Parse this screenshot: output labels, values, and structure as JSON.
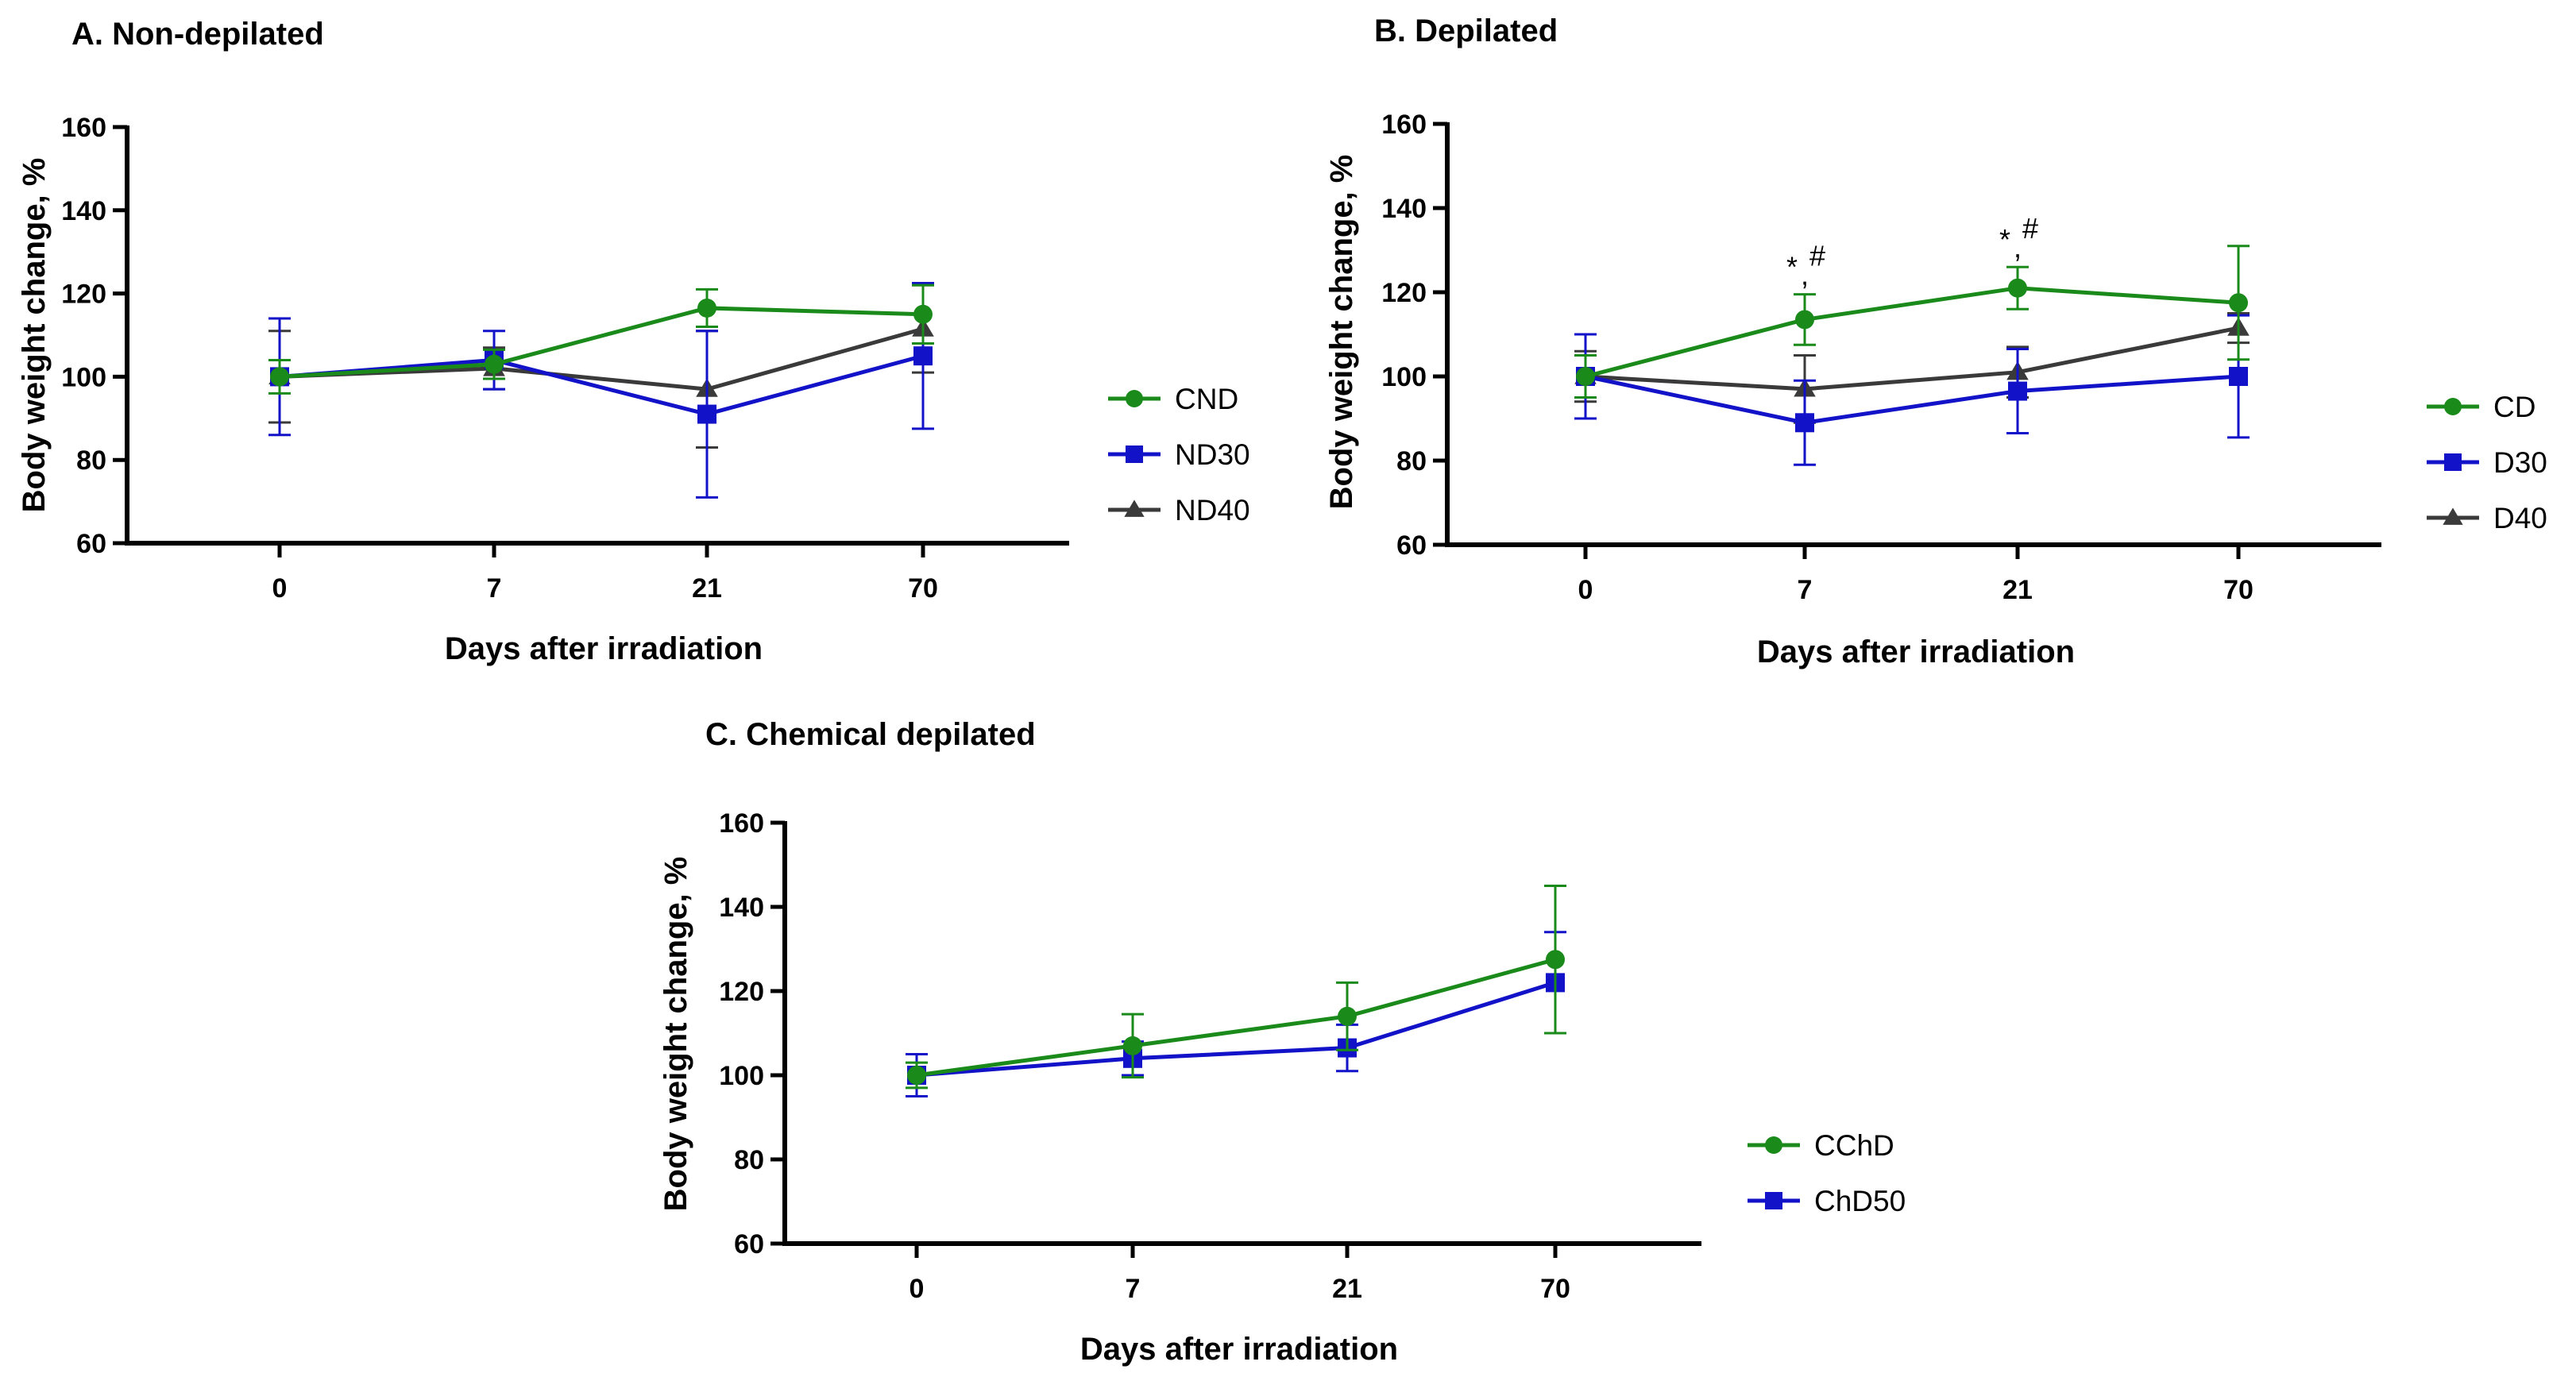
{
  "colors": {
    "green": "#1a8a1a",
    "blue": "#1212c8",
    "gray": "#3a3a3a",
    "axis": "#000000"
  },
  "chart_data": [
    {
      "id": "A",
      "type": "line",
      "title": "A. Non-depilated",
      "xlabel": "Days after irradiation",
      "ylabel": "Body weight change, %",
      "categories": [
        "0",
        "7",
        "21",
        "70"
      ],
      "ylim": [
        60,
        160
      ],
      "yticks": [
        "60",
        "80",
        "100",
        "120",
        "140",
        "160"
      ],
      "legend_position": "right",
      "series": [
        {
          "name": "CND",
          "color": "green",
          "marker": "circle",
          "values": [
            100,
            103,
            116.5,
            115
          ],
          "errors": [
            4,
            3.5,
            4.5,
            7
          ]
        },
        {
          "name": "ND30",
          "color": "blue",
          "marker": "square",
          "values": [
            100,
            104,
            91,
            105
          ],
          "errors": [
            14,
            7,
            20,
            17.5
          ]
        },
        {
          "name": "ND40",
          "color": "gray",
          "marker": "triangle",
          "values": [
            100,
            102,
            97,
            111.5
          ],
          "errors": [
            11,
            5,
            14,
            10.5
          ]
        }
      ],
      "annotations": []
    },
    {
      "id": "B",
      "type": "line",
      "title": "B. Depilated",
      "xlabel": "Days after irradiation",
      "ylabel": "Body weight change, %",
      "categories": [
        "0",
        "7",
        "21",
        "70"
      ],
      "ylim": [
        60,
        160
      ],
      "yticks": [
        "60",
        "80",
        "100",
        "120",
        "140",
        "160"
      ],
      "legend_position": "right",
      "series": [
        {
          "name": "CD",
          "color": "green",
          "marker": "circle",
          "values": [
            100,
            113.5,
            121,
            117.5
          ],
          "errors": [
            5,
            6,
            5,
            13.5
          ]
        },
        {
          "name": "D30",
          "color": "blue",
          "marker": "square",
          "values": [
            100,
            89,
            96.5,
            100
          ],
          "errors": [
            10,
            10,
            10,
            14.5
          ]
        },
        {
          "name": "D40",
          "color": "gray",
          "marker": "triangle",
          "values": [
            100,
            97,
            101,
            111.5
          ],
          "errors": [
            6,
            8,
            6,
            3.5
          ]
        }
      ],
      "annotations": [
        {
          "category": "7",
          "text": "*",
          "sup": "#"
        },
        {
          "category": "21",
          "text": "*",
          "sup": "#"
        }
      ]
    },
    {
      "id": "C",
      "type": "line",
      "title": "C. Chemical depilated",
      "xlabel": "Days after irradiation",
      "ylabel": "Body weight change, %",
      "categories": [
        "0",
        "7",
        "21",
        "70"
      ],
      "ylim": [
        60,
        160
      ],
      "yticks": [
        "60",
        "80",
        "100",
        "120",
        "140",
        "160"
      ],
      "legend_position": "right",
      "series": [
        {
          "name": "CChD",
          "color": "green",
          "marker": "circle",
          "values": [
            100,
            107,
            114,
            127.5
          ],
          "errors": [
            3,
            7.5,
            8,
            17.5
          ]
        },
        {
          "name": "ChD50",
          "color": "blue",
          "marker": "square",
          "values": [
            100,
            104,
            106.5,
            122
          ],
          "errors": [
            5,
            4,
            5.5,
            12
          ]
        }
      ],
      "annotations": []
    }
  ]
}
